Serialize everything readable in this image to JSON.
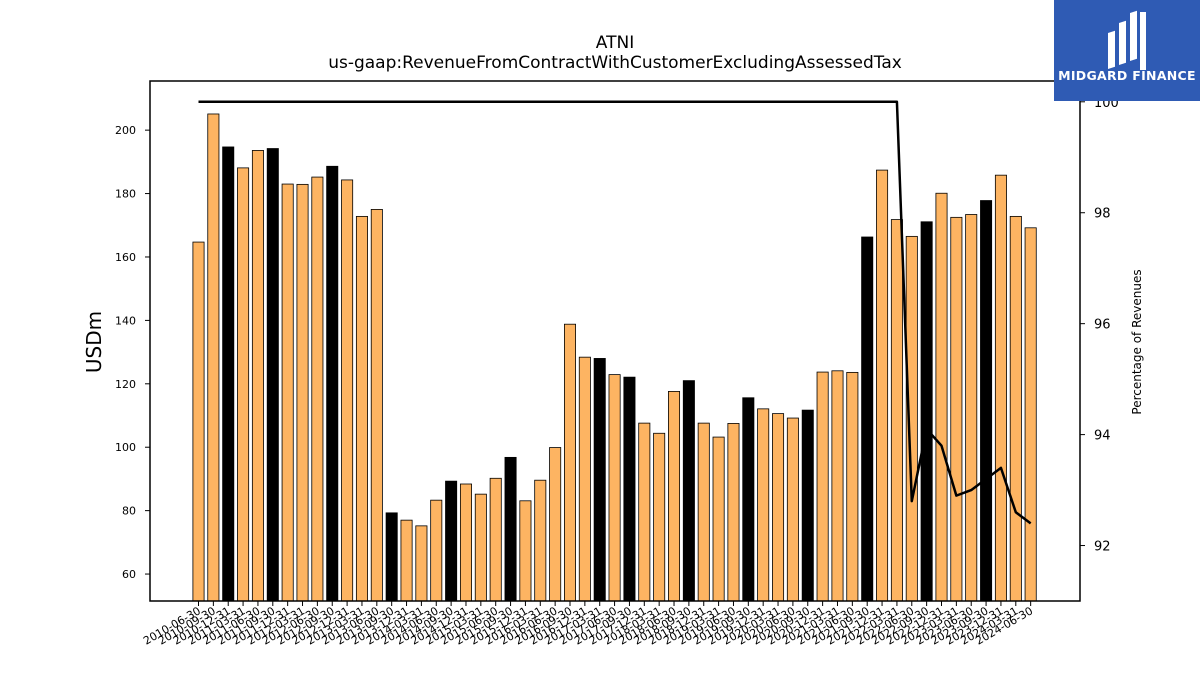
{
  "chart_data": {
    "type": "bar",
    "title": "ATNI",
    "subtitle": "us-gaap:RevenueFromContractWithCustomerExcludingAssessedTax",
    "ylabel": "USDm",
    "y2label": "Percentage of Revenues",
    "ylim": [
      51.5,
      215.5
    ],
    "y2lim": [
      91.0,
      100.375
    ],
    "yticks": [
      60,
      80,
      100,
      120,
      140,
      160,
      180,
      200
    ],
    "y2ticks": [
      92,
      94,
      96,
      98,
      100
    ],
    "categories": [
      "2010-06-30",
      "2010-09-30",
      "2010-12-31",
      "2011-03-31",
      "2011-06-30",
      "2011-09-30",
      "2011-12-31",
      "2012-03-31",
      "2012-06-30",
      "2012-09-30",
      "2012-12-31",
      "2013-03-31",
      "2013-06-30",
      "2013-09-30",
      "2013-12-31",
      "2014-03-31",
      "2014-06-30",
      "2014-09-30",
      "2014-12-31",
      "2015-03-31",
      "2015-06-30",
      "2015-09-30",
      "2015-12-31",
      "2016-03-31",
      "2016-06-30",
      "2016-09-30",
      "2016-12-31",
      "2017-03-31",
      "2017-06-30",
      "2017-09-30",
      "2017-12-31",
      "2018-03-31",
      "2018-06-30",
      "2018-09-30",
      "2018-12-31",
      "2019-03-31",
      "2019-06-30",
      "2019-09-30",
      "2019-12-31",
      "2020-03-31",
      "2020-06-30",
      "2020-09-30",
      "2020-12-31",
      "2021-03-31",
      "2021-06-30",
      "2021-09-30",
      "2021-12-31",
      "2022-03-31",
      "2022-06-30",
      "2022-09-30",
      "2022-12-31",
      "2023-03-31",
      "2023-06-30",
      "2023-09-30",
      "2023-12-31",
      "2024-03-31",
      "2024-06-30"
    ],
    "series": [
      {
        "type": "bar",
        "values": [
          164.7,
          205.1,
          194.7,
          188.1,
          193.6,
          194.2,
          183.0,
          182.9,
          185.2,
          188.6,
          184.3,
          172.8,
          175.0,
          79.3,
          77.0,
          75.2,
          83.3,
          89.3,
          88.4,
          85.2,
          90.2,
          96.8,
          83.1,
          89.6,
          99.9,
          138.8,
          128.4,
          128.0,
          122.9,
          122.1,
          107.6,
          104.4,
          117.6,
          121.0,
          107.6,
          103.2,
          107.5,
          115.6,
          112.1,
          110.6,
          109.2,
          111.7,
          123.7,
          124.1,
          123.6,
          166.3,
          187.4,
          171.8,
          166.5,
          171.1,
          180.1,
          172.5,
          173.4,
          177.8,
          185.8,
          172.8,
          169.2
        ],
        "highlight": [
          2,
          5,
          9,
          13,
          17,
          21,
          27,
          29,
          33,
          37,
          41,
          45,
          49,
          53
        ],
        "colors": {
          "default": "#fdb462",
          "highlight": "#000000",
          "edge": "#000000"
        }
      },
      {
        "type": "line",
        "axis": "right",
        "color": "#000000",
        "values": [
          100,
          100,
          100,
          100,
          100,
          100,
          100,
          100,
          100,
          100,
          100,
          100,
          100,
          100,
          100,
          100,
          100,
          100,
          100,
          100,
          100,
          100,
          100,
          100,
          100,
          100,
          100,
          100,
          100,
          100,
          100,
          100,
          100,
          100,
          100,
          100,
          100,
          100,
          100,
          100,
          100,
          100,
          100,
          100,
          100,
          100,
          100,
          100,
          92.8,
          94.1,
          93.8,
          92.9,
          93.0,
          93.2,
          93.4,
          92.6,
          92.4
        ]
      }
    ],
    "grid": false
  },
  "logo": {
    "text": "MIDGARD FINANCE",
    "color": "#2f5bb4"
  }
}
